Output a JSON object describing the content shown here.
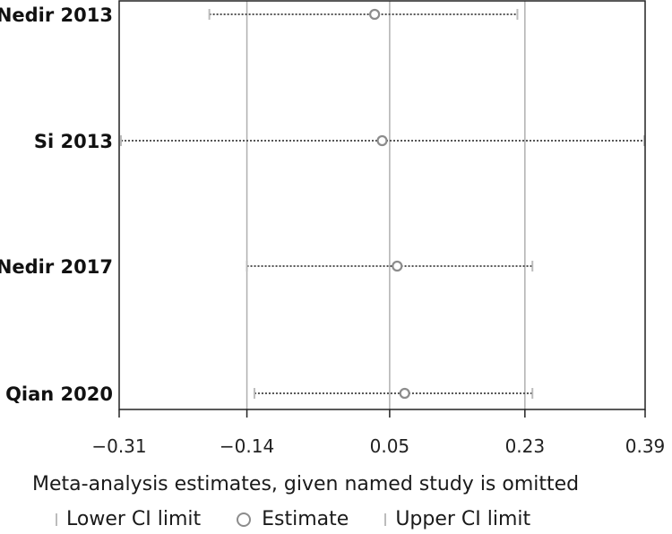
{
  "chart_data": {
    "type": "scatter",
    "title": "",
    "xlabel": "Meta-analysis estimates, given named study is omitted",
    "ylabel": "",
    "xlim": [
      -0.31,
      0.39
    ],
    "xticks": [
      -0.31,
      -0.14,
      0.05,
      0.23,
      0.39
    ],
    "xtick_labels": [
      "−0.31",
      "−0.14",
      "0.05",
      "0.23",
      "0.39"
    ],
    "reference_lines": [
      -0.14,
      0.05,
      0.23
    ],
    "studies": [
      {
        "label": "Nedir 2013",
        "lower": -0.19,
        "estimate": 0.03,
        "upper": 0.22
      },
      {
        "label": "Si 2013",
        "lower": -0.31,
        "estimate": 0.04,
        "upper": 0.39
      },
      {
        "label": "Nedir 2017",
        "lower": -0.14,
        "estimate": 0.06,
        "upper": 0.24
      },
      {
        "label": "Qian 2020",
        "lower": -0.13,
        "estimate": 0.07,
        "upper": 0.24
      }
    ],
    "legend": {
      "placement": "bottom",
      "entries": [
        "Lower CI limit",
        "Estimate",
        "Upper CI limit"
      ]
    },
    "colors": {
      "estimate": "#8c8c8c",
      "ci_line": "#555555",
      "ci_cap": "#bcbcbc",
      "reference_line": "#b0b0b0",
      "axis": "#222222"
    }
  }
}
